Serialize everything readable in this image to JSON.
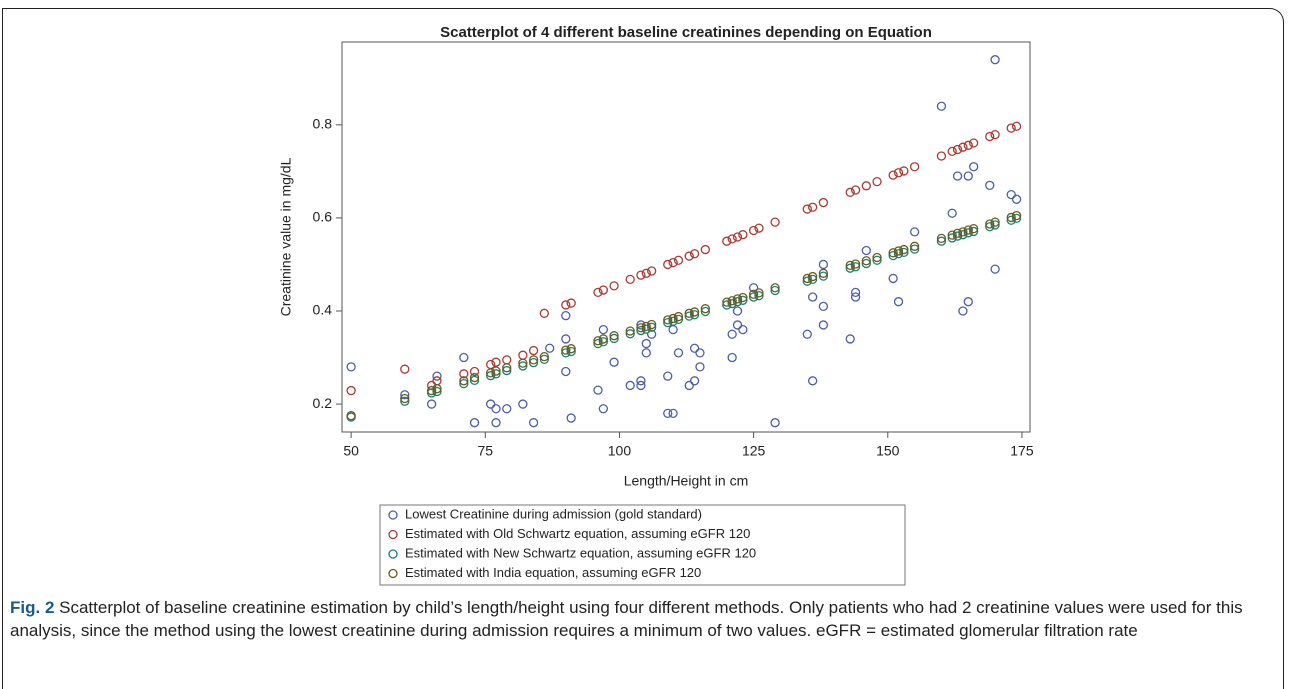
{
  "chart_data": {
    "type": "scatter",
    "title": "Scatterplot of 4 different baseline creatinines depending on Equation",
    "x_label": "Length/Height in cm",
    "y_label": "Creatinine value in mg/dL",
    "xlim": [
      48.3,
      176.5
    ],
    "ylim": [
      0.14,
      0.978
    ],
    "xticks": [
      50,
      75,
      100,
      125,
      150,
      175
    ],
    "yticks": [
      0.2,
      0.4,
      0.6,
      0.8
    ],
    "grid": false,
    "series": [
      {
        "name": "Lowest Creatinine during admission (gold standard)",
        "color": "#4a5ea8",
        "x": [
          50,
          60,
          65,
          66,
          71,
          73,
          76,
          77,
          77,
          79,
          82,
          84,
          87,
          90,
          90,
          90,
          91,
          96,
          97,
          97,
          99,
          102,
          104,
          104,
          104,
          105,
          105,
          106,
          109,
          109,
          110,
          110,
          111,
          113,
          114,
          114,
          115,
          115,
          121,
          121,
          122,
          122,
          123,
          125,
          129,
          135,
          136,
          136,
          138,
          138,
          138,
          143,
          144,
          144,
          146,
          151,
          152,
          155,
          160,
          162,
          163,
          164,
          165,
          165,
          166,
          169,
          170,
          170,
          173,
          174
        ],
        "values": [
          0.28,
          0.22,
          0.2,
          0.26,
          0.3,
          0.16,
          0.2,
          0.19,
          0.16,
          0.19,
          0.2,
          0.16,
          0.32,
          0.27,
          0.34,
          0.39,
          0.17,
          0.23,
          0.19,
          0.36,
          0.29,
          0.24,
          0.25,
          0.24,
          0.37,
          0.33,
          0.31,
          0.35,
          0.26,
          0.18,
          0.18,
          0.36,
          0.31,
          0.24,
          0.25,
          0.32,
          0.31,
          0.28,
          0.3,
          0.35,
          0.37,
          0.4,
          0.36,
          0.45,
          0.16,
          0.35,
          0.25,
          0.43,
          0.37,
          0.41,
          0.5,
          0.34,
          0.43,
          0.44,
          0.53,
          0.47,
          0.42,
          0.57,
          0.84,
          0.61,
          0.69,
          0.4,
          0.69,
          0.42,
          0.71,
          0.67,
          0.94,
          0.49,
          0.65,
          0.64
        ]
      },
      {
        "name": "Estimated with Old Schwartz equation, assuming eGFR 120",
        "color": "#a83a32",
        "x": [
          50,
          60,
          65,
          66,
          71,
          73,
          76,
          77,
          79,
          82,
          84,
          86,
          90,
          91,
          96,
          97,
          99,
          102,
          104,
          105,
          106,
          109,
          110,
          111,
          113,
          114,
          116,
          120,
          121,
          122,
          123,
          125,
          126,
          129,
          135,
          136,
          138,
          143,
          144,
          146,
          148,
          151,
          152,
          153,
          155,
          160,
          162,
          163,
          164,
          165,
          166,
          169,
          170,
          173,
          174
        ],
        "values": [
          0.229,
          0.275,
          0.24,
          0.25,
          0.265,
          0.27,
          0.285,
          0.29,
          0.295,
          0.305,
          0.315,
          0.395,
          0.413,
          0.417,
          0.44,
          0.445,
          0.454,
          0.468,
          0.477,
          0.481,
          0.486,
          0.5,
          0.504,
          0.509,
          0.518,
          0.523,
          0.532,
          0.55,
          0.555,
          0.559,
          0.564,
          0.573,
          0.578,
          0.591,
          0.619,
          0.623,
          0.633,
          0.655,
          0.66,
          0.669,
          0.678,
          0.692,
          0.697,
          0.701,
          0.71,
          0.733,
          0.743,
          0.747,
          0.752,
          0.756,
          0.761,
          0.775,
          0.779,
          0.793,
          0.797
        ]
      },
      {
        "name": "Estimated with New Schwartz equation, assuming eGFR 120",
        "color": "#1b7f6e",
        "x": [
          50,
          60,
          65,
          66,
          71,
          73,
          76,
          77,
          79,
          82,
          84,
          86,
          90,
          91,
          96,
          97,
          99,
          102,
          104,
          105,
          106,
          109,
          110,
          111,
          113,
          114,
          116,
          120,
          121,
          122,
          123,
          125,
          126,
          129,
          135,
          136,
          138,
          143,
          144,
          146,
          148,
          151,
          152,
          153,
          155,
          160,
          162,
          163,
          164,
          165,
          166,
          169,
          170,
          173,
          174
        ],
        "values": [
          0.172,
          0.206,
          0.224,
          0.227,
          0.244,
          0.251,
          0.261,
          0.265,
          0.272,
          0.282,
          0.289,
          0.296,
          0.31,
          0.313,
          0.33,
          0.334,
          0.341,
          0.351,
          0.358,
          0.361,
          0.365,
          0.375,
          0.378,
          0.382,
          0.389,
          0.392,
          0.399,
          0.413,
          0.416,
          0.42,
          0.423,
          0.43,
          0.433,
          0.444,
          0.464,
          0.468,
          0.475,
          0.492,
          0.495,
          0.502,
          0.509,
          0.519,
          0.523,
          0.526,
          0.533,
          0.55,
          0.557,
          0.561,
          0.564,
          0.568,
          0.571,
          0.581,
          0.585,
          0.595,
          0.599
        ]
      },
      {
        "name": "Estimated with India equation, assuming eGFR 120",
        "color": "#6b5a1e",
        "x": [
          50,
          60,
          65,
          66,
          71,
          73,
          76,
          77,
          79,
          82,
          84,
          86,
          90,
          91,
          96,
          97,
          99,
          102,
          104,
          105,
          106,
          109,
          110,
          111,
          113,
          114,
          116,
          120,
          121,
          122,
          123,
          125,
          126,
          129,
          135,
          136,
          138,
          143,
          144,
          146,
          148,
          151,
          152,
          153,
          155,
          160,
          162,
          163,
          164,
          165,
          166,
          169,
          170,
          173,
          174
        ],
        "values": [
          0.175,
          0.212,
          0.229,
          0.233,
          0.25,
          0.257,
          0.267,
          0.271,
          0.278,
          0.288,
          0.295,
          0.302,
          0.316,
          0.319,
          0.336,
          0.34,
          0.347,
          0.357,
          0.364,
          0.367,
          0.371,
          0.381,
          0.384,
          0.388,
          0.395,
          0.398,
          0.405,
          0.419,
          0.422,
          0.426,
          0.429,
          0.436,
          0.439,
          0.45,
          0.47,
          0.474,
          0.481,
          0.498,
          0.501,
          0.508,
          0.515,
          0.525,
          0.529,
          0.532,
          0.539,
          0.556,
          0.563,
          0.567,
          0.57,
          0.574,
          0.577,
          0.587,
          0.591,
          0.601,
          0.605
        ]
      }
    ]
  },
  "caption": {
    "label": "Fig. 2",
    "text": "Scatterplot of baseline creatinine estimation by child’s length/height using four different methods. Only patients who had 2 creatinine values were used for this analysis, since the method using the lowest creatinine during admission requires a minimum of two values. eGFR = estimated glomerular filtration rate"
  }
}
